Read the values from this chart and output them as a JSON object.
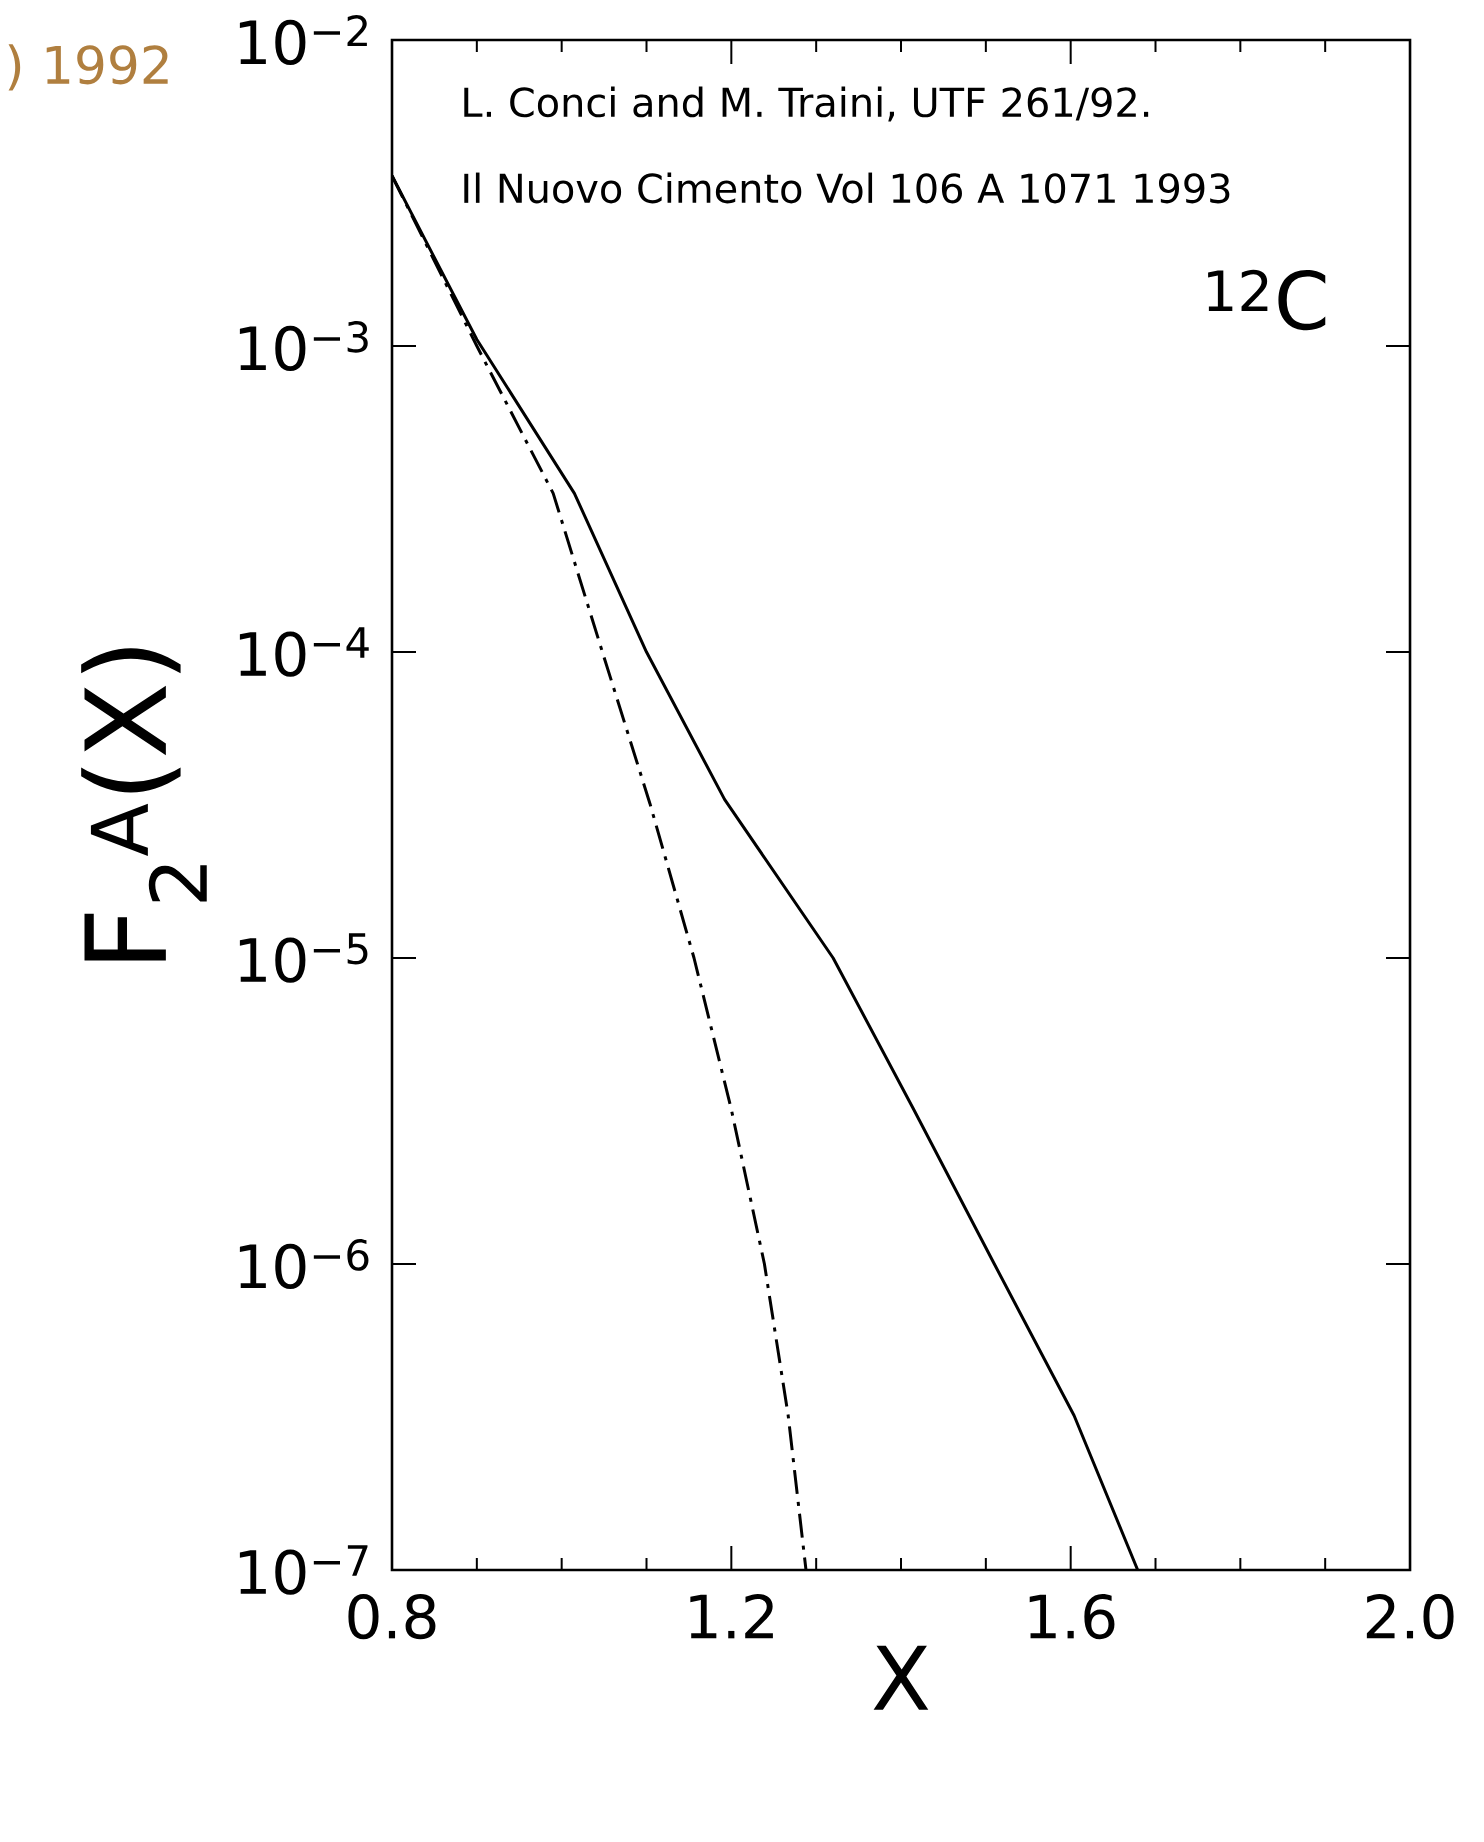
{
  "chart_data": {
    "type": "line",
    "xlabel": "X",
    "ylabel": "F$_{2}$$^{A}$(X)",
    "annotations": [
      ") 1992",
      "L. Conci and M. Traini, UTF 261/92.",
      "Il Nuovo Cimento Vol 106 A  1071 1993",
      "$^{12}$C"
    ],
    "series": [
      {
        "color": "#000000",
        "line_style": "solid",
        "x": [
          0.8,
          0.9,
          1.015,
          1.1,
          1.192,
          1.32,
          1.415,
          1.51,
          1.604,
          1.679
        ],
        "values": [
          0.0036,
          0.00105,
          0.00033,
          0.0001,
          3.3e-05,
          1e-05,
          3.2e-06,
          1e-06,
          3.2e-07,
          1e-07
        ]
      },
      {
        "color": "#000000",
        "line_style": "dashdot",
        "x": [
          0.8,
          0.9,
          0.99,
          1.048,
          1.104,
          1.156,
          1.2,
          1.239,
          1.267,
          1.288
        ],
        "values": [
          0.0036,
          0.001,
          0.00033,
          0.0001,
          3.2e-05,
          1e-05,
          3.2e-06,
          1e-06,
          3.2e-07,
          1e-07
        ]
      }
    ],
    "log": "y",
    "grid": false,
    "marker": "none",
    "xlim": [
      0.8,
      2.0
    ],
    "ylim": [
      1e-07,
      0.01
    ],
    "xticks": [
      0.8,
      1.2,
      1.6,
      {
        "value": 2,
        "label": "2.0"
      }
    ],
    "yticks": [
      {
        "value": 1e-07,
        "label": "10$^{−7}$"
      },
      {
        "value": 1e-06,
        "label": "10$^{−6}$"
      },
      {
        "value": 1e-05,
        "label": "10$^{−5}$"
      },
      {
        "value": 0.0001,
        "label": "10$^{−4}$"
      },
      {
        "value": 0.001,
        "label": "10$^{−3}$"
      },
      {
        "value": 0.01,
        "label": "10$^{−2}$"
      }
    ]
  }
}
